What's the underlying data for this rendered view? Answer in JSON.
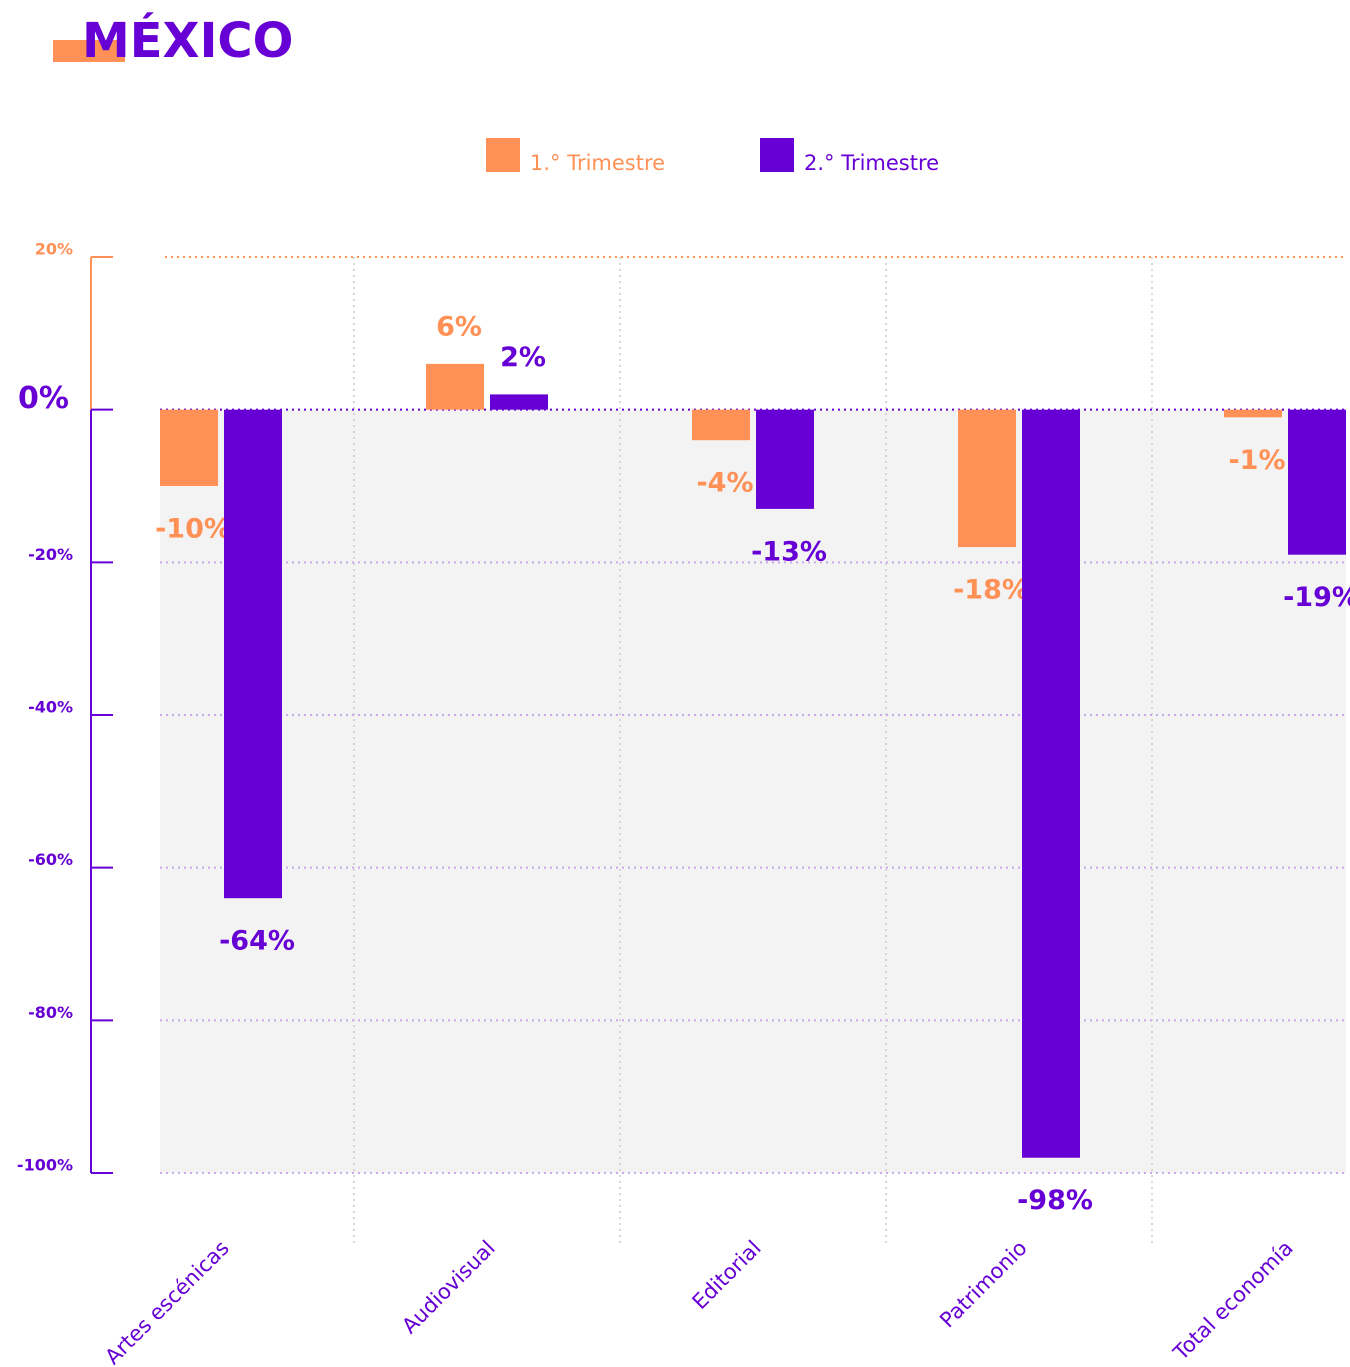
{
  "chart_data": {
    "type": "bar",
    "title": "MÉXICO",
    "categories": [
      "Artes escénicas",
      "Audiovisual",
      "Editorial",
      "Patrimonio",
      "Total economía"
    ],
    "series": [
      {
        "name": "1.° Trimestre",
        "color": "#ff9157",
        "values": [
          -10,
          6,
          -4,
          -18,
          -1
        ],
        "value_labels": [
          "-10%",
          "6%",
          "-4%",
          "-18%",
          "-1%"
        ]
      },
      {
        "name": "2.° Trimestre",
        "color": "#6600d4",
        "values": [
          -64,
          2,
          -13,
          -98,
          -19
        ],
        "value_labels": [
          "-64%",
          "2%",
          "-13%",
          "-98%",
          "-19%"
        ]
      }
    ],
    "ylim": [
      -100,
      20
    ],
    "yticks": [
      {
        "value": -100,
        "label": "-100%"
      },
      {
        "value": -80,
        "label": "-80%"
      },
      {
        "value": -60,
        "label": "-60%"
      },
      {
        "value": -40,
        "label": "-40%"
      },
      {
        "value": -20,
        "label": "-20%"
      },
      {
        "value": 0,
        "label": "0%"
      },
      {
        "value": 20,
        "label": "20%"
      }
    ],
    "grid": true
  }
}
